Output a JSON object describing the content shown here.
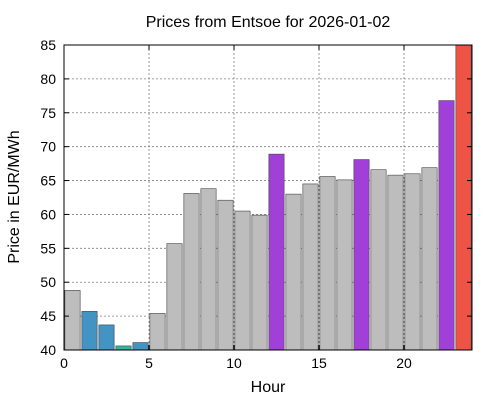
{
  "chart_data": {
    "type": "bar",
    "title": "Prices from Entsoe for 2026-01-02",
    "xlabel": "Hour",
    "ylabel": "Price in EUR/MWh",
    "xlim": [
      0,
      24
    ],
    "ylim": [
      40,
      85
    ],
    "xticks": [
      0,
      5,
      10,
      15,
      20
    ],
    "yticks": [
      40,
      45,
      50,
      55,
      60,
      65,
      70,
      75,
      80,
      85
    ],
    "grid": true,
    "bar_width": 0.9,
    "bars": [
      {
        "hour": 0.5,
        "value": 48.8,
        "color": "#bdbdbd"
      },
      {
        "hour": 1.5,
        "value": 45.7,
        "color": "#4393c3"
      },
      {
        "hour": 2.5,
        "value": 43.7,
        "color": "#4393c3"
      },
      {
        "hour": 3.5,
        "value": 40.6,
        "color": "#2fb8a0"
      },
      {
        "hour": 4.5,
        "value": 41.1,
        "color": "#4393c3"
      },
      {
        "hour": 5.5,
        "value": 45.4,
        "color": "#bdbdbd"
      },
      {
        "hour": 6.5,
        "value": 55.7,
        "color": "#bdbdbd"
      },
      {
        "hour": 7.5,
        "value": 63.1,
        "color": "#bdbdbd"
      },
      {
        "hour": 8.5,
        "value": 63.8,
        "color": "#bdbdbd"
      },
      {
        "hour": 9.5,
        "value": 62.1,
        "color": "#bdbdbd"
      },
      {
        "hour": 10.5,
        "value": 60.5,
        "color": "#bdbdbd"
      },
      {
        "hour": 11.5,
        "value": 59.9,
        "color": "#bdbdbd"
      },
      {
        "hour": 12.5,
        "value": 68.9,
        "color": "#a040d8"
      },
      {
        "hour": 13.5,
        "value": 63.0,
        "color": "#bdbdbd"
      },
      {
        "hour": 14.5,
        "value": 64.5,
        "color": "#bdbdbd"
      },
      {
        "hour": 15.5,
        "value": 65.6,
        "color": "#bdbdbd"
      },
      {
        "hour": 16.5,
        "value": 65.1,
        "color": "#bdbdbd"
      },
      {
        "hour": 17.5,
        "value": 68.1,
        "color": "#a040d8"
      },
      {
        "hour": 18.5,
        "value": 66.6,
        "color": "#bdbdbd"
      },
      {
        "hour": 19.5,
        "value": 65.8,
        "color": "#bdbdbd"
      },
      {
        "hour": 20.5,
        "value": 66.0,
        "color": "#bdbdbd"
      },
      {
        "hour": 21.5,
        "value": 66.9,
        "color": "#bdbdbd"
      },
      {
        "hour": 22.5,
        "value": 76.8,
        "color": "#a040d8"
      },
      {
        "hour": 23.5,
        "value": 85.0,
        "color": "#ef5345"
      }
    ]
  }
}
